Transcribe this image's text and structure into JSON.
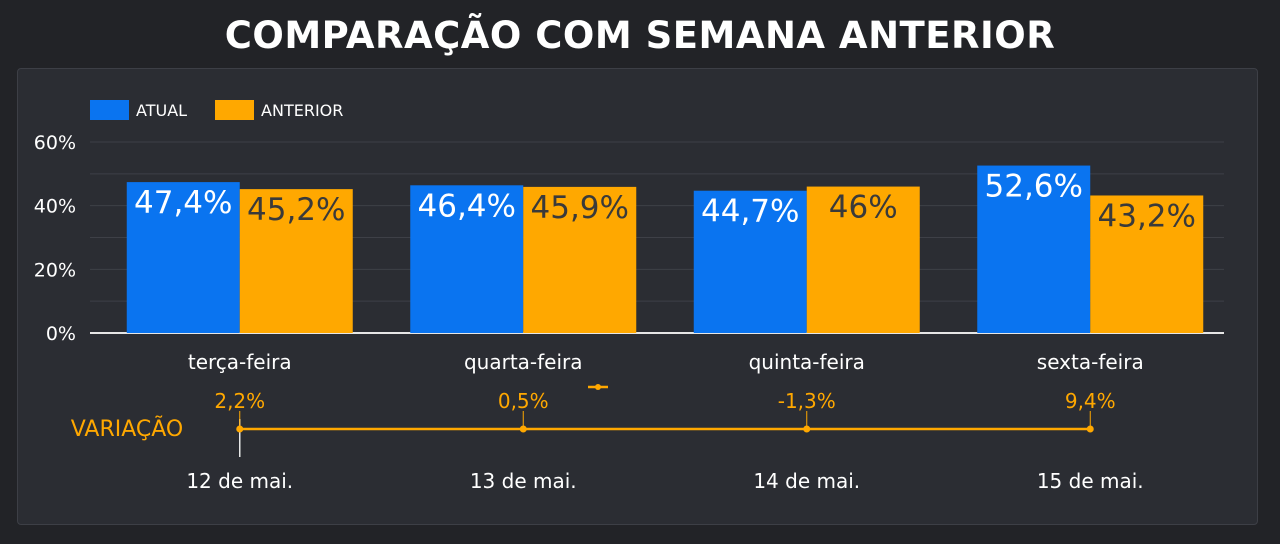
{
  "title": "COMPARAÇÃO COM SEMANA ANTERIOR",
  "colors": {
    "atual": "#0a74f0",
    "anterior": "#ffa800",
    "background": "#222327",
    "panel": "#2b2d33",
    "grid": "#3e4047",
    "axis": "#e6e6e6"
  },
  "chart_data": [
    {
      "type": "bar",
      "categories": [
        "terça-feira",
        "quarta-feira",
        "quinta-feira",
        "sexta-feira"
      ],
      "series": [
        {
          "name": "ATUAL",
          "values": [
            47.4,
            46.4,
            44.7,
            52.6
          ],
          "labels": [
            "47,4%",
            "46,4%",
            "44,7%",
            "52,6%"
          ]
        },
        {
          "name": "ANTERIOR",
          "values": [
            45.2,
            45.9,
            46.0,
            43.2
          ],
          "labels": [
            "45,2%",
            "45,9%",
            "46%",
            "43,2%"
          ]
        }
      ],
      "ylim": [
        0,
        60
      ],
      "yticks": [
        "0%",
        "20%",
        "40%",
        "60%"
      ],
      "legend": "top-left",
      "grid": true
    },
    {
      "type": "line",
      "name": "VARIAÇÃO",
      "x": [
        "12 de mai.",
        "13 de mai.",
        "14 de mai.",
        "15 de mai."
      ],
      "values": [
        2.2,
        0.5,
        -1.3,
        9.4
      ],
      "labels": [
        "2,2%",
        "0,5%",
        "-1,3%",
        "9,4%"
      ]
    }
  ]
}
